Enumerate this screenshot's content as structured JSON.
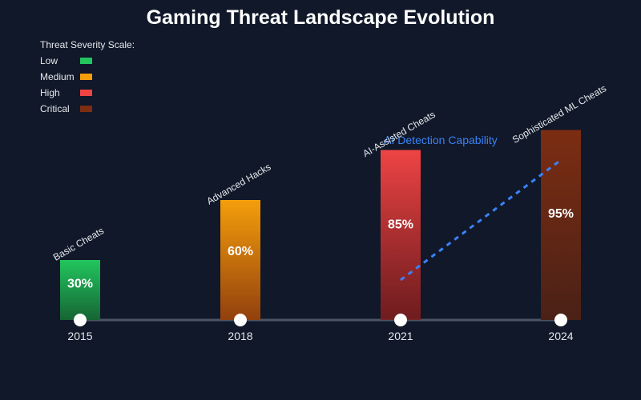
{
  "colors": {
    "background": "#101829",
    "axis": "#4b5563",
    "low": "#22c55e",
    "medium": "#f59e0b",
    "high": "#ef4444",
    "critical": "#7c2d12",
    "ai_line": "#3b82f6"
  },
  "legend": {
    "title": "Threat Severity Scale:",
    "items": [
      {
        "label": "Low",
        "severity": "low"
      },
      {
        "label": "Medium",
        "severity": "medium"
      },
      {
        "label": "High",
        "severity": "high"
      },
      {
        "label": "Critical",
        "severity": "critical"
      }
    ]
  },
  "chart_data": {
    "type": "bar",
    "title": "Gaming Threat Landscape Evolution",
    "xlabel": "",
    "ylabel": "",
    "ylim": [
      0,
      100
    ],
    "categories": [
      "2015",
      "2018",
      "2021",
      "2024"
    ],
    "values": [
      30,
      60,
      85,
      95
    ],
    "value_labels": [
      "30%",
      "60%",
      "85%",
      "95%"
    ],
    "bar_labels": [
      "Basic Cheats",
      "Advanced Hacks",
      "AI-Assisted Cheats",
      "Sophisticated ML Cheats"
    ],
    "severity": [
      "low",
      "medium",
      "high",
      "critical"
    ],
    "overlay_line": {
      "name": "AI Detection Capability",
      "style": "dashed",
      "from_category": "2021",
      "to_category": "2024",
      "values": [
        20,
        80
      ]
    },
    "legend_position": "top-left",
    "grid": false
  }
}
